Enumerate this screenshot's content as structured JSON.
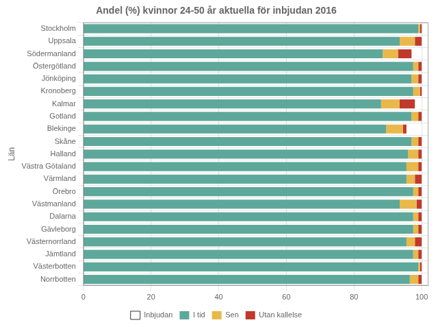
{
  "chart_data": {
    "type": "bar",
    "title": "Andel (%) kvinnor 24-50 år aktuella för inbjudan 2016",
    "ylabel": "Län",
    "orientation": "horizontal",
    "stacked": true,
    "categories": [
      "Stockholm",
      "Uppsala",
      "Södermanland",
      "Östergötland",
      "Jönköping",
      "Kronoberg",
      "Kalmar",
      "Gotland",
      "Blekinge",
      "Skåne",
      "Halland",
      "Västra Götaland",
      "Värmland",
      "Örebro",
      "Västmanland",
      "Dalarna",
      "Gävleborg",
      "Västernorrland",
      "Jämtland",
      "Västerbotten",
      "Norrbotten"
    ],
    "series": [
      {
        "name": "Inbjudan",
        "color": "#FFFFFF",
        "values": [
          null,
          null,
          null,
          null,
          null,
          null,
          null,
          null,
          null,
          null,
          null,
          null,
          null,
          null,
          null,
          null,
          null,
          null,
          null,
          null,
          null
        ]
      },
      {
        "name": "I tid",
        "color": "#5DA89A",
        "values": [
          99.0,
          93.5,
          88.5,
          97.5,
          97.0,
          97.5,
          88.0,
          97.0,
          89.5,
          97.0,
          96.0,
          95.5,
          95.5,
          97.5,
          93.5,
          97.5,
          97.5,
          95.5,
          97.5,
          99.0,
          96.5
        ]
      },
      {
        "name": "Sen",
        "color": "#E8B84B",
        "values": [
          0.5,
          4.5,
          4.5,
          1.5,
          2.0,
          2.0,
          5.5,
          2.0,
          5.0,
          2.0,
          3.0,
          3.5,
          2.5,
          1.5,
          5.0,
          1.5,
          1.5,
          2.5,
          1.5,
          0.5,
          2.5
        ]
      },
      {
        "name": "Utan kallelse",
        "color": "#C0392B",
        "values": [
          0.5,
          2.0,
          4.0,
          1.0,
          1.0,
          0.5,
          4.5,
          1.0,
          1.0,
          1.0,
          1.0,
          1.0,
          2.0,
          1.0,
          1.5,
          1.0,
          1.0,
          2.0,
          1.0,
          0.5,
          1.0
        ]
      }
    ],
    "xlim": [
      0,
      102
    ],
    "xticks": [
      0,
      20,
      40,
      60,
      80,
      100
    ],
    "grid": true,
    "legend": "bottom"
  }
}
